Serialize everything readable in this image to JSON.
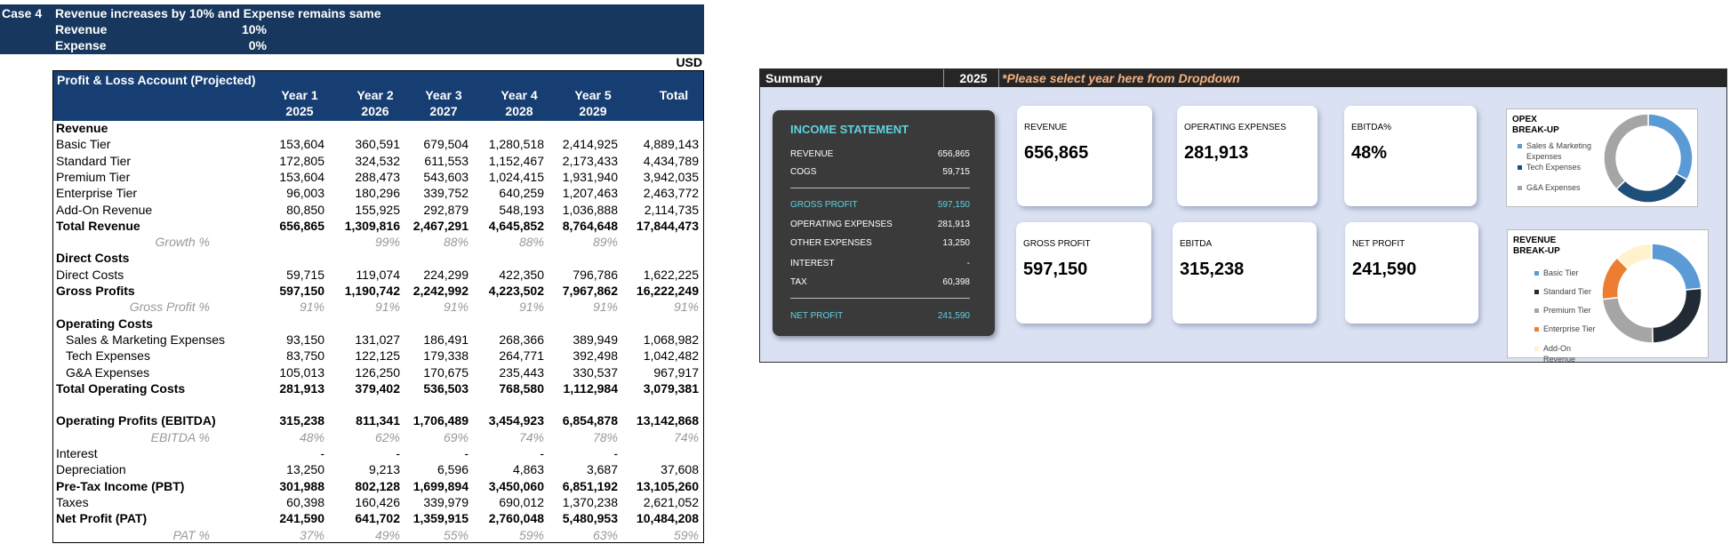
{
  "header": {
    "case": "Case 4",
    "description": "Revenue increases by 10% and Expense remains same",
    "rows": [
      {
        "label": "Revenue",
        "value": "10%"
      },
      {
        "label": "Expense",
        "value": "0%"
      }
    ],
    "currency": "USD"
  },
  "table": {
    "title": "Profit & Loss Account (Projected)",
    "columns": [
      {
        "label": "Year 1",
        "year": "2025"
      },
      {
        "label": "Year 2",
        "year": "2026"
      },
      {
        "label": "Year 3",
        "year": "2027"
      },
      {
        "label": "Year 4",
        "year": "2028"
      },
      {
        "label": "Year 5",
        "year": "2029"
      },
      {
        "label": "Total"
      }
    ],
    "rows": [
      {
        "label": "Revenue"
      },
      {
        "label": "Basic Tier",
        "values": [
          "153,604",
          "360,591",
          "679,504",
          "1,280,518",
          "2,414,925",
          "4,889,143"
        ]
      },
      {
        "label": "Standard Tier",
        "values": [
          "172,805",
          "324,532",
          "611,553",
          "1,152,467",
          "2,173,433",
          "4,434,789"
        ]
      },
      {
        "label": "Premium Tier",
        "values": [
          "153,604",
          "288,473",
          "543,603",
          "1,024,415",
          "1,931,940",
          "3,942,035"
        ]
      },
      {
        "label": "Enterprise Tier",
        "values": [
          "96,003",
          "180,296",
          "339,752",
          "640,259",
          "1,207,463",
          "2,463,772"
        ]
      },
      {
        "label": "Add-On Revenue",
        "values": [
          "80,850",
          "155,925",
          "292,879",
          "548,193",
          "1,036,888",
          "2,114,735"
        ]
      },
      {
        "label": "Total Revenue",
        "values": [
          "656,865",
          "1,309,816",
          "2,467,291",
          "4,645,852",
          "8,764,648",
          "17,844,473"
        ]
      },
      {
        "label": "Growth %",
        "values": [
          null,
          "99%",
          "88%",
          "88%",
          "89%",
          null
        ]
      },
      {
        "label": "Direct Costs"
      },
      {
        "label": "Direct Costs",
        "values": [
          "59,715",
          "119,074",
          "224,299",
          "422,350",
          "796,786",
          "1,622,225"
        ]
      },
      {
        "label": "Gross Profits",
        "values": [
          "597,150",
          "1,190,742",
          "2,242,992",
          "4,223,502",
          "7,967,862",
          "16,222,249"
        ]
      },
      {
        "label": "Gross Profit %",
        "values": [
          "91%",
          "91%",
          "91%",
          "91%",
          "91%",
          "91%"
        ]
      },
      {
        "label": "Operating Costs"
      },
      {
        "label": "Sales & Marketing Expenses",
        "values": [
          "93,150",
          "131,027",
          "186,491",
          "268,366",
          "389,949",
          "1,068,982"
        ]
      },
      {
        "label": "Tech Expenses",
        "values": [
          "83,750",
          "122,125",
          "179,338",
          "264,771",
          "392,498",
          "1,042,482"
        ]
      },
      {
        "label": "G&A Expenses",
        "values": [
          "105,013",
          "126,250",
          "170,675",
          "235,443",
          "330,537",
          "967,917"
        ]
      },
      {
        "label": "Total Operating Costs",
        "values": [
          "281,913",
          "379,402",
          "536,503",
          "768,580",
          "1,112,984",
          "3,079,381"
        ]
      },
      {
        "label": "Operating Profits (EBITDA)",
        "values": [
          "315,238",
          "811,341",
          "1,706,489",
          "3,454,923",
          "6,854,878",
          "13,142,868"
        ]
      },
      {
        "label": "EBITDA %",
        "values": [
          "48%",
          "62%",
          "69%",
          "74%",
          "78%",
          "74%"
        ]
      },
      {
        "label": "Interest",
        "values": [
          "-",
          "-",
          "-",
          "-",
          "-",
          null
        ]
      },
      {
        "label": "Depreciation",
        "values": [
          "13,250",
          "9,213",
          "6,596",
          "4,863",
          "3,687",
          "37,608"
        ]
      },
      {
        "label": "Pre-Tax Income (PBT)",
        "values": [
          "301,988",
          "802,128",
          "1,699,894",
          "3,450,060",
          "6,851,192",
          "13,105,260"
        ]
      },
      {
        "label": "Taxes",
        "values": [
          "60,398",
          "160,426",
          "339,979",
          "690,012",
          "1,370,238",
          "2,621,052"
        ]
      },
      {
        "label": "Net Profit (PAT)",
        "values": [
          "241,590",
          "641,702",
          "1,359,915",
          "2,760,048",
          "5,480,953",
          "10,484,208"
        ]
      },
      {
        "label": "PAT %",
        "values": [
          "37%",
          "49%",
          "55%",
          "59%",
          "63%",
          "59%"
        ]
      }
    ]
  },
  "dashboard": {
    "title": "Summary",
    "year": "2025",
    "note": "*Please select year here from Dropdown",
    "income_statement": {
      "title": "INCOME STATEMENT",
      "rows": [
        {
          "label": "REVENUE",
          "value": "656,865"
        },
        {
          "label": "COGS",
          "value": "59,715"
        },
        {
          "label": "GROSS PROFIT",
          "value": "597,150"
        },
        {
          "label": "OPERATING EXPENSES",
          "value": "281,913"
        },
        {
          "label": "OTHER EXPENSES",
          "value": "13,250"
        },
        {
          "label": "INTEREST",
          "value": "-"
        },
        {
          "label": "TAX",
          "value": "60,398"
        },
        {
          "label": "NET PROFIT",
          "value": "241,590"
        }
      ]
    },
    "cards": [
      {
        "label": "REVENUE",
        "value": "656,865"
      },
      {
        "label": "OPERATING EXPENSES",
        "value": "281,913"
      },
      {
        "label": "EBITDA%",
        "value": "48%"
      },
      {
        "label": "GROSS PROFIT",
        "value": "597,150"
      },
      {
        "label": "EBITDA",
        "value": "315,238"
      },
      {
        "label": "NET PROFIT",
        "value": "241,590"
      }
    ],
    "opex_chart": {
      "type": "pie",
      "title": "OPEX BREAK-UP",
      "labels": [
        "Sales & Marketing Expenses",
        "Tech Expenses",
        "G&A Expenses"
      ],
      "values": [
        93150,
        83750,
        105013
      ],
      "colors": [
        "#5b9bd5",
        "#1f4e79",
        "#a5a5a5"
      ]
    },
    "revenue_chart": {
      "type": "pie",
      "title": "REVENUE BREAK-UP",
      "labels": [
        "Basic Tier",
        "Standard Tier",
        "Premium Tier",
        "Enterprise Tier",
        "Add-On Revenue"
      ],
      "values": [
        153604,
        172805,
        153604,
        96003,
        80850
      ],
      "colors": [
        "#5b9bd5",
        "#222a35",
        "#a5a5a5",
        "#ed7d31",
        "#fff2cc"
      ]
    }
  }
}
